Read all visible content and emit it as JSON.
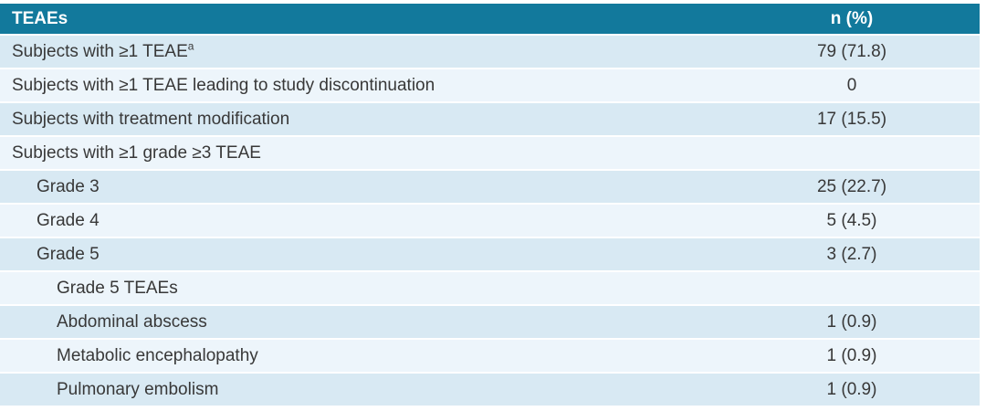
{
  "table": {
    "title_note": "TEAE summary table",
    "colors": {
      "header_bg": "#12799c",
      "header_text": "#ffffff",
      "row_odd_bg": "#d8e9f3",
      "row_even_bg": "#edf5fb",
      "body_text": "#383838"
    },
    "header": {
      "col1": "TEAEs",
      "col2": "n (%)"
    },
    "rows": [
      {
        "label": "Subjects with ≥1 TEAE",
        "sup": "a",
        "value": "79 (71.8)",
        "indent": 0
      },
      {
        "label": "Subjects with ≥1 TEAE leading to study discontinuation",
        "value": "0",
        "indent": 0
      },
      {
        "label": "Subjects with treatment modification",
        "value": "17 (15.5)",
        "indent": 0
      },
      {
        "label": "Subjects with ≥1 grade ≥3 TEAE",
        "value": "",
        "indent": 0
      },
      {
        "label": "Grade 3",
        "value": "25 (22.7)",
        "indent": 1
      },
      {
        "label": "Grade 4",
        "value": "5 (4.5)",
        "indent": 1
      },
      {
        "label": "Grade 5",
        "value": "3 (2.7)",
        "indent": 1
      },
      {
        "label": "Grade 5 TEAEs",
        "value": "",
        "indent": 2
      },
      {
        "label": "Abdominal abscess",
        "value": "1 (0.9)",
        "indent": 2
      },
      {
        "label": "Metabolic encephalopathy",
        "value": "1 (0.9)",
        "indent": 2
      },
      {
        "label": "Pulmonary embolism",
        "value": "1 (0.9)",
        "indent": 2
      }
    ]
  },
  "chart_data": {
    "type": "table",
    "title": "TEAEs",
    "columns": [
      "TEAEs",
      "n (%)"
    ],
    "rows": [
      [
        "Subjects with ≥1 TEAE(a)",
        "79 (71.8)"
      ],
      [
        "Subjects with ≥1 TEAE leading to study discontinuation",
        "0"
      ],
      [
        "Subjects with treatment modification",
        "17 (15.5)"
      ],
      [
        "Subjects with ≥1 grade ≥3 TEAE",
        ""
      ],
      [
        "Grade 3",
        "25 (22.7)"
      ],
      [
        "Grade 4",
        "5 (4.5)"
      ],
      [
        "Grade 5",
        "3 (2.7)"
      ],
      [
        "Grade 5 TEAEs",
        ""
      ],
      [
        "Abdominal abscess",
        "1 (0.9)"
      ],
      [
        "Metabolic encephalopathy",
        "1 (0.9)"
      ],
      [
        "Pulmonary embolism",
        "1 (0.9)"
      ]
    ]
  }
}
